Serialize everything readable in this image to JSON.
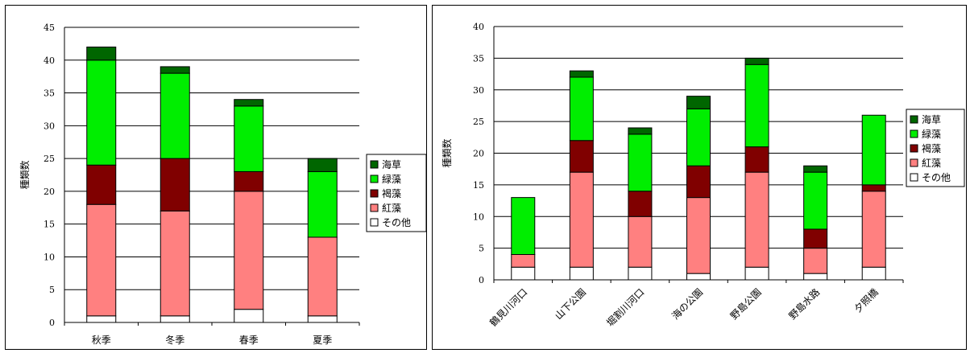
{
  "colors": {
    "海草": "#006600",
    "緑藻": "#00ee00",
    "褐藻": "#800000",
    "紅藻": "#ff8080",
    "その他": "#ffffff"
  },
  "chart_data": [
    {
      "type": "bar",
      "stacked": true,
      "categories": [
        "秋季",
        "冬季",
        "春季",
        "夏季"
      ],
      "ylabel": "種類数",
      "ylim": [
        0,
        45
      ],
      "yticks": [
        0,
        5,
        10,
        15,
        20,
        25,
        30,
        35,
        40,
        45
      ],
      "grid": true,
      "legend_position": "right",
      "series": [
        {
          "name": "その他",
          "values": [
            1,
            1,
            2,
            1
          ]
        },
        {
          "name": "紅藻",
          "values": [
            17,
            16,
            18,
            12
          ]
        },
        {
          "name": "褐藻",
          "values": [
            6,
            8,
            3,
            0
          ]
        },
        {
          "name": "緑藻",
          "values": [
            16,
            13,
            10,
            10
          ]
        },
        {
          "name": "海草",
          "values": [
            2,
            1,
            1,
            2
          ]
        }
      ]
    },
    {
      "type": "bar",
      "stacked": true,
      "categories": [
        "鶴見川河口",
        "山下公園",
        "堀割川河口",
        "海の公園",
        "野島公園",
        "野島水路",
        "夕照橋"
      ],
      "ylabel": "種類数",
      "ylim": [
        0,
        40
      ],
      "yticks": [
        0,
        5,
        10,
        15,
        20,
        25,
        30,
        35,
        40
      ],
      "grid": true,
      "legend_position": "right",
      "series": [
        {
          "name": "その他",
          "values": [
            2,
            2,
            2,
            1,
            2,
            1,
            2
          ]
        },
        {
          "name": "紅藻",
          "values": [
            2,
            15,
            8,
            12,
            15,
            4,
            12
          ]
        },
        {
          "name": "褐藻",
          "values": [
            0,
            5,
            4,
            5,
            4,
            3,
            1
          ]
        },
        {
          "name": "緑藻",
          "values": [
            9,
            10,
            9,
            9,
            13,
            9,
            11
          ]
        },
        {
          "name": "海草",
          "values": [
            0,
            1,
            1,
            2,
            1,
            1,
            0
          ]
        }
      ]
    }
  ]
}
